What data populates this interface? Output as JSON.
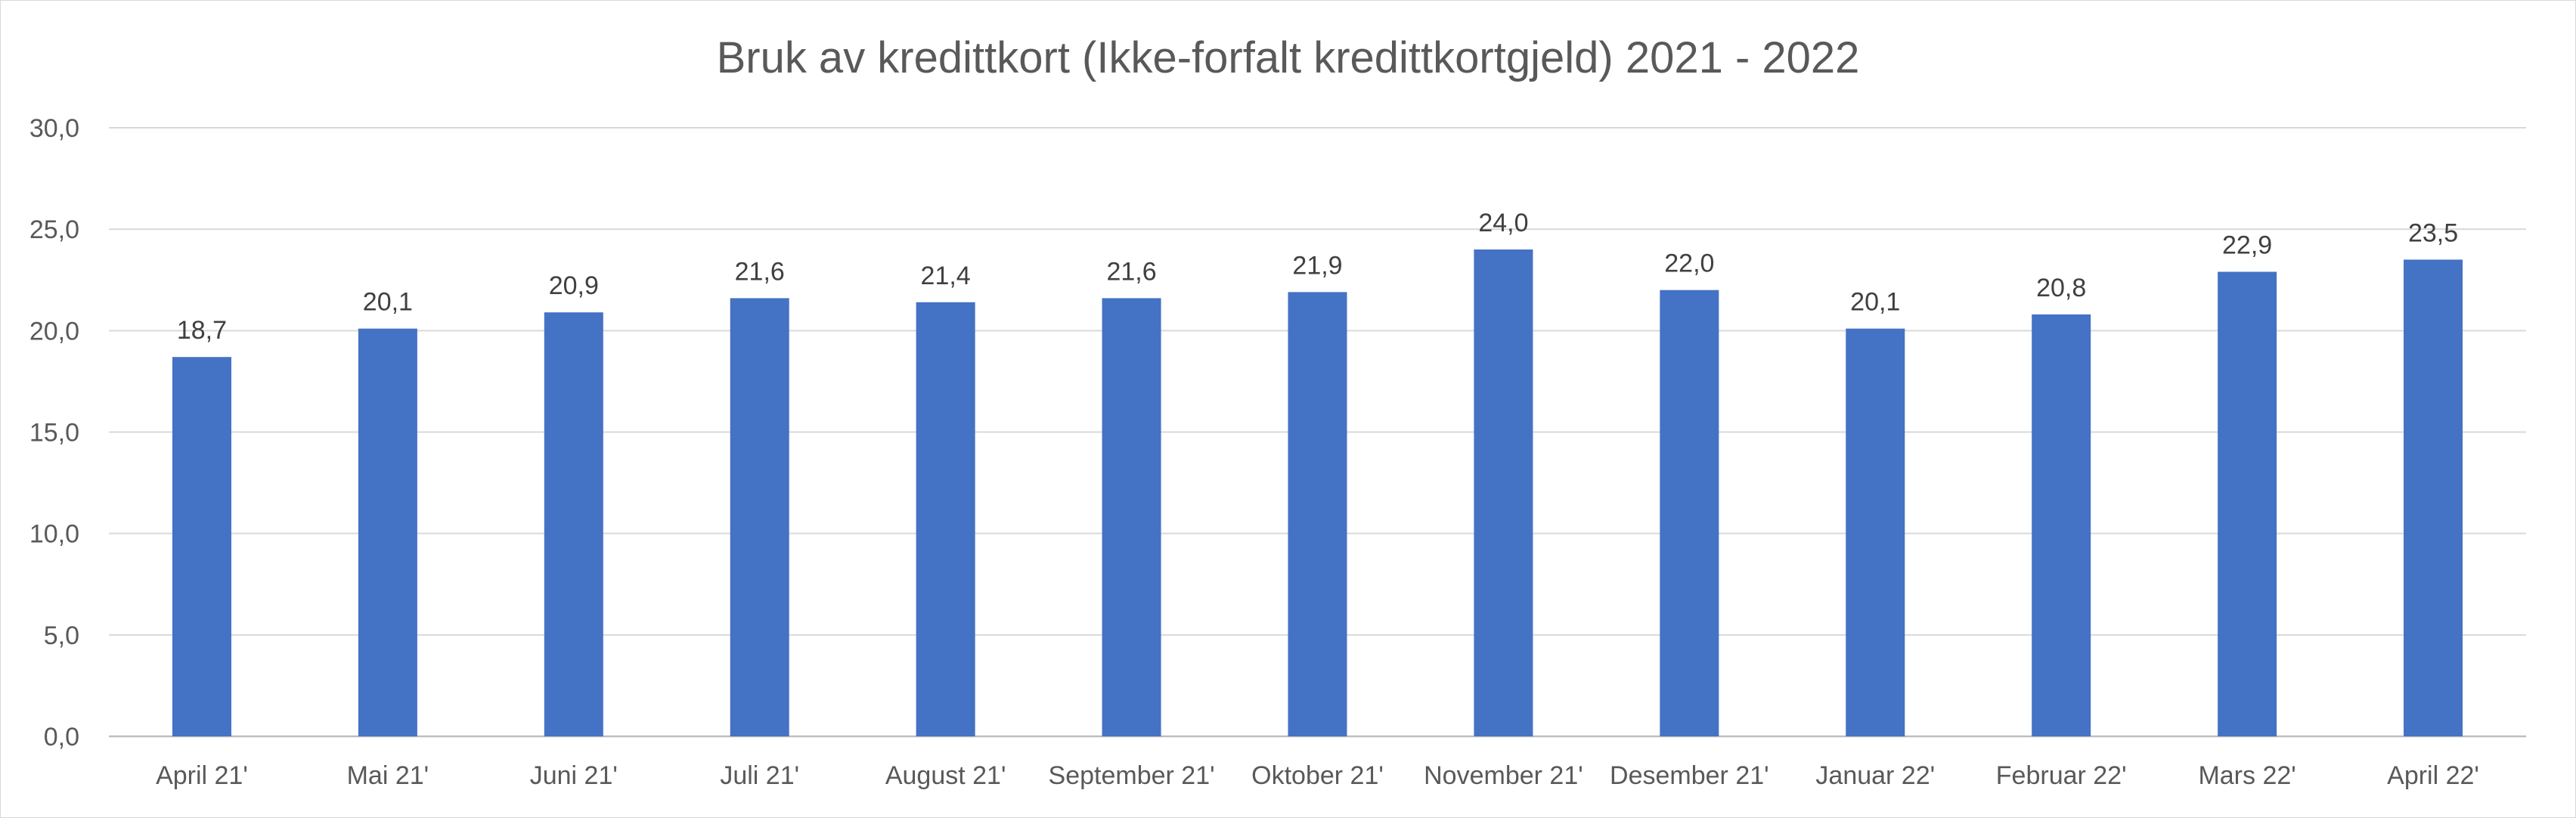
{
  "chart_data": {
    "type": "bar",
    "title": "Bruk av kredittkort (Ikke-forfalt kredittkortgjeld) 2021 - 2022",
    "xlabel": "",
    "ylabel": "",
    "categories": [
      "April 21'",
      "Mai 21'",
      "Juni 21'",
      "Juli 21'",
      "August 21'",
      "September 21'",
      "Oktober 21'",
      "November 21'",
      "Desember 21'",
      "Januar 22'",
      "Februar 22'",
      "Mars 22'",
      "April 22'"
    ],
    "values": [
      18.7,
      20.1,
      20.9,
      21.6,
      21.4,
      21.6,
      21.9,
      24.0,
      22.0,
      20.1,
      20.8,
      22.9,
      23.5
    ],
    "data_labels": [
      "18,7",
      "20,1",
      "20,9",
      "21,6",
      "21,4",
      "21,6",
      "21,9",
      "24,0",
      "22,0",
      "20,1",
      "20,8",
      "22,9",
      "23,5"
    ],
    "ylim": [
      0,
      30
    ],
    "y_ticks": [
      0,
      5,
      10,
      15,
      20,
      25,
      30
    ],
    "y_tick_labels": [
      "0,0",
      "5,0",
      "10,0",
      "15,0",
      "20,0",
      "25,0",
      "30,0"
    ],
    "grid": true,
    "legend": "none",
    "bar_color": "#4472c4",
    "grid_color": "#d9d9d9"
  }
}
